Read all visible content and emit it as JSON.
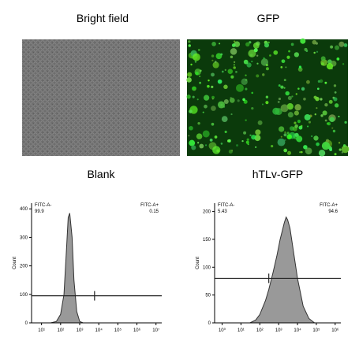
{
  "images": [
    {
      "title": "Bright field"
    },
    {
      "title": "GFP"
    }
  ],
  "chart_data": [
    {
      "type": "area",
      "title": "Blank",
      "y_label": "Count",
      "log_x": true,
      "color": "#999999",
      "x": [
        30,
        60,
        100,
        150,
        200,
        250,
        300,
        400,
        500,
        700,
        1000,
        1500
      ],
      "values": [
        0,
        5,
        30,
        100,
        250,
        370,
        385,
        300,
        150,
        40,
        5,
        0
      ],
      "xlim": [
        3,
        20000000
      ],
      "xticks": [
        {
          "value": 10,
          "label": "10¹"
        },
        {
          "value": 100,
          "label": "10²"
        },
        {
          "value": 1000,
          "label": "10³"
        },
        {
          "value": 10000,
          "label": "10⁴"
        },
        {
          "value": 100000,
          "label": "10⁵"
        },
        {
          "value": 1000000,
          "label": "10⁶"
        },
        {
          "value": 10000000,
          "label": "10⁷"
        }
      ],
      "ylim": [
        0,
        420
      ],
      "yticks": [
        0,
        100,
        200,
        300,
        400
      ],
      "gate": {
        "threshold": 6000,
        "level": 95
      },
      "gate_labels": [
        {
          "name": "FITC-A-",
          "percent": 99.9
        },
        {
          "name": "FITC-A+",
          "percent": 0.15
        }
      ]
    },
    {
      "type": "area",
      "title": "hTLv-GFP",
      "y_label": "Count",
      "log_x": true,
      "color": "#999999",
      "x": [
        30,
        60,
        100,
        200,
        300,
        500,
        800,
        1200,
        2000,
        2500,
        3000,
        4000,
        6000,
        10000,
        20000,
        40000,
        80000
      ],
      "values": [
        0,
        5,
        15,
        40,
        60,
        90,
        120,
        150,
        180,
        190,
        185,
        170,
        130,
        80,
        30,
        8,
        0
      ],
      "xlim": [
        0.4,
        2000000
      ],
      "xticks": [
        {
          "value": 1,
          "label": "10⁰"
        },
        {
          "value": 10,
          "label": "10¹"
        },
        {
          "value": 100,
          "label": "10²"
        },
        {
          "value": 1000,
          "label": "10³"
        },
        {
          "value": 10000,
          "label": "10⁴"
        },
        {
          "value": 100000,
          "label": "10⁵"
        },
        {
          "value": 1000000,
          "label": "10⁶"
        }
      ],
      "ylim": [
        0,
        215
      ],
      "yticks": [
        0,
        50,
        100,
        150,
        200
      ],
      "gate": {
        "threshold": 300,
        "level": 80
      },
      "gate_labels": [
        {
          "name": "FITC-A-",
          "percent": 5.43
        },
        {
          "name": "FITC-A+",
          "percent": 94.6
        }
      ]
    }
  ]
}
